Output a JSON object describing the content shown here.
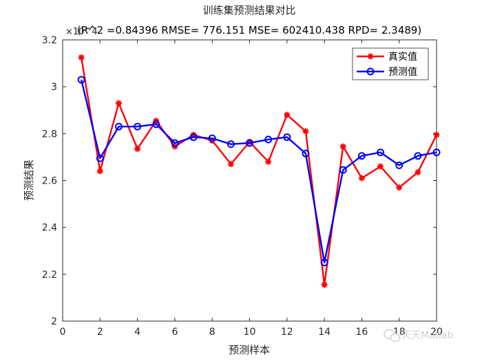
{
  "chart_data": {
    "type": "line",
    "title": "训练集预测结果对比",
    "subtitle": "(R^2 =0.84396 RMSE= 776.151 MSE= 602410.438 RPD= 2.3489)",
    "xlabel": "预测样本",
    "ylabel": "预测结果",
    "y_exponent_label": "×10^4",
    "xlim": [
      0,
      20
    ],
    "ylim": [
      2.0,
      3.2
    ],
    "x_ticks": [
      0,
      2,
      4,
      6,
      8,
      10,
      12,
      14,
      16,
      18,
      20
    ],
    "y_ticks": [
      2.0,
      2.2,
      2.4,
      2.6,
      2.8,
      3.0,
      3.2
    ],
    "x_tick_labels": [
      "0",
      "2",
      "4",
      "6",
      "8",
      "10",
      "12",
      "14",
      "16",
      "18",
      "20"
    ],
    "y_tick_labels": [
      "2",
      "2.2",
      "2.4",
      "2.6",
      "2.8",
      "3",
      "3.2"
    ],
    "grid": false,
    "legend_position": "top-right",
    "x": [
      1,
      2,
      3,
      4,
      5,
      6,
      7,
      8,
      9,
      10,
      11,
      12,
      13,
      14,
      15,
      16,
      17,
      18,
      19,
      20
    ],
    "series": [
      {
        "name": "真实值",
        "color": "#ff0000",
        "marker": "asterisk",
        "values": [
          3.125,
          2.64,
          2.93,
          2.735,
          2.855,
          2.745,
          2.795,
          2.77,
          2.67,
          2.765,
          2.68,
          2.88,
          2.81,
          2.155,
          2.745,
          2.61,
          2.66,
          2.57,
          2.635,
          2.795
        ]
      },
      {
        "name": "预测值",
        "color": "#0000ff",
        "marker": "circle",
        "values": [
          3.03,
          2.695,
          2.83,
          2.83,
          2.84,
          2.76,
          2.785,
          2.78,
          2.755,
          2.76,
          2.775,
          2.785,
          2.715,
          2.25,
          2.645,
          2.705,
          2.72,
          2.665,
          2.705,
          2.72
        ]
      }
    ]
  },
  "watermark": {
    "text": "天天Matlab",
    "icon": "wechat-icon"
  }
}
